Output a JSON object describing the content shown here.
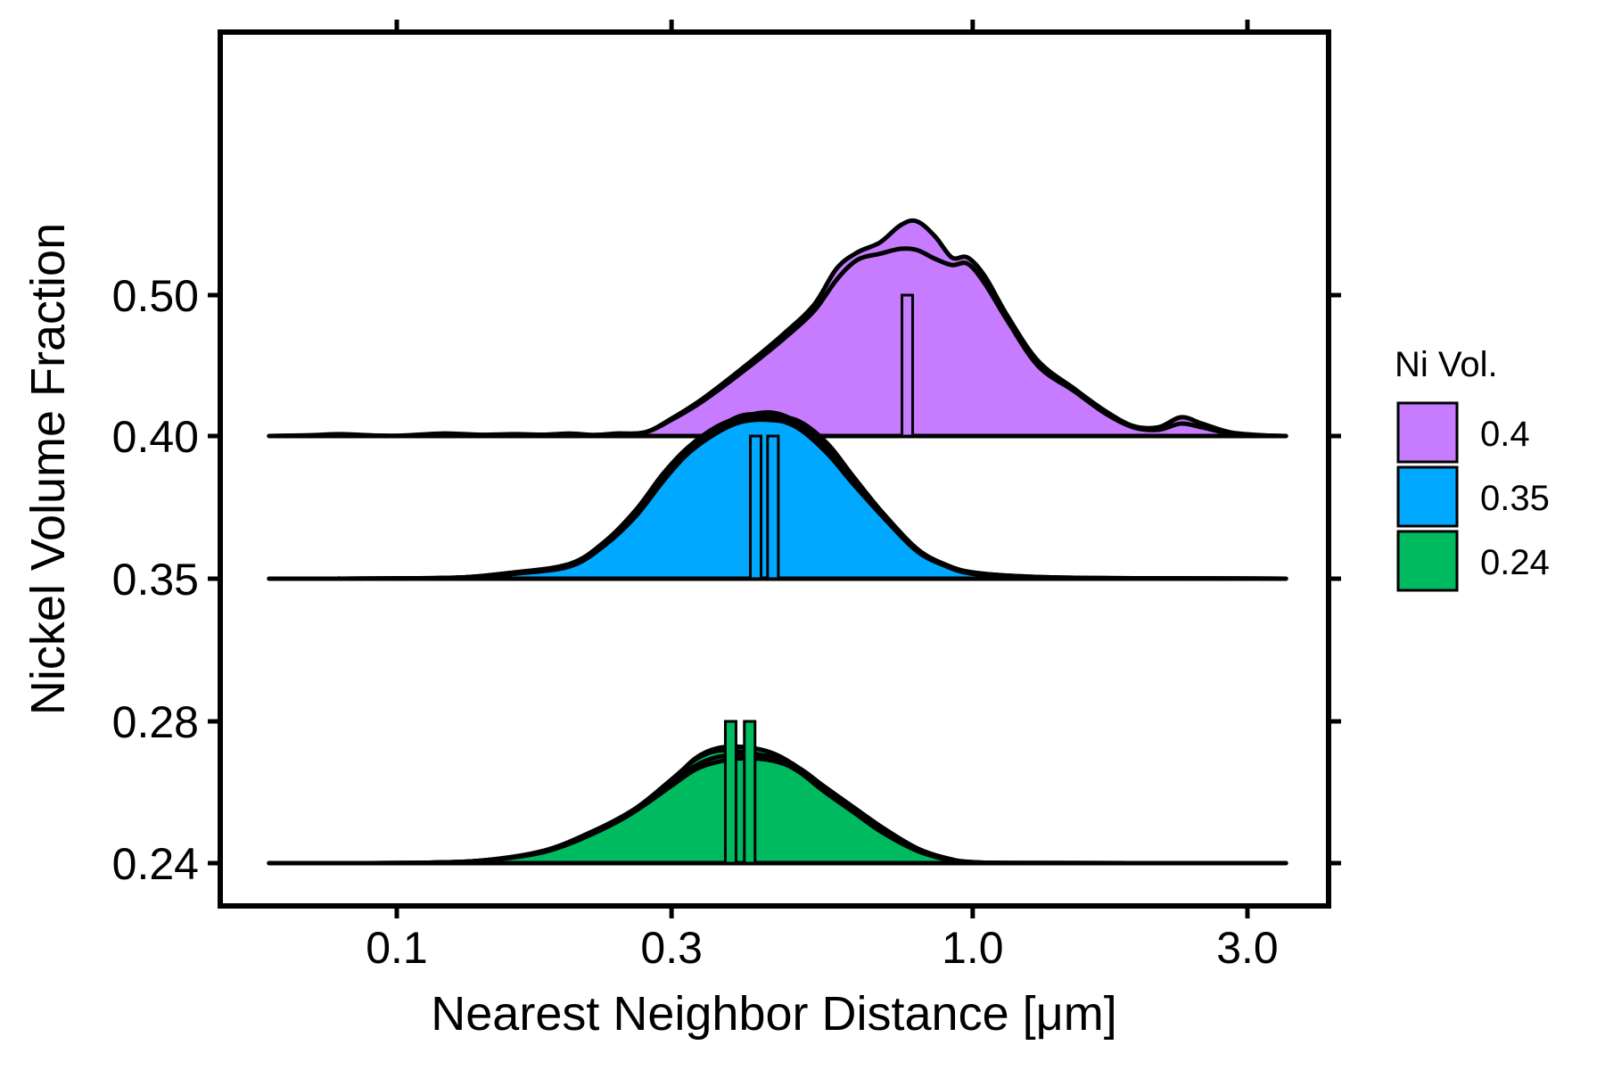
{
  "chart_data": {
    "type": "ridgeline-density",
    "title": "",
    "xlabel": "Nearest Neighbor Distance [μm]",
    "ylabel": "Nickel Volume Fraction",
    "x_scale": "log10",
    "xlim": [
      0.055,
      4.2
    ],
    "x_ticks": [
      {
        "value": 0.1,
        "label": "0.1"
      },
      {
        "value": 0.3,
        "label": "0.3"
      },
      {
        "value": 1.0,
        "label": "1.0"
      },
      {
        "value": 3.0,
        "label": "3.0"
      }
    ],
    "y_ticks": [
      "0.24",
      "0.28",
      "0.35",
      "0.40",
      "0.50"
    ],
    "grid": false,
    "legend": {
      "title": "Ni Vol.",
      "position": "right",
      "entries": [
        {
          "label": "0.4",
          "color": "#C77CFF"
        },
        {
          "label": "0.35",
          "color": "#00A9FF"
        },
        {
          "label": "0.24",
          "color": "#00BA5F"
        }
      ]
    },
    "series": [
      {
        "group": "0.24",
        "color": "#00BA5F",
        "baseline_tick": "0.24",
        "median_markers": [
          0.38,
          0.41
        ],
        "curves": [
          [
            [
              0.08,
              0
            ],
            [
              0.11,
              0.003
            ],
            [
              0.14,
              0.02
            ],
            [
              0.18,
              0.09
            ],
            [
              0.22,
              0.24
            ],
            [
              0.26,
              0.42
            ],
            [
              0.3,
              0.66
            ],
            [
              0.33,
              0.84
            ],
            [
              0.36,
              0.92
            ],
            [
              0.4,
              0.93
            ],
            [
              0.45,
              0.88
            ],
            [
              0.5,
              0.76
            ],
            [
              0.55,
              0.6
            ],
            [
              0.62,
              0.43
            ],
            [
              0.7,
              0.25
            ],
            [
              0.8,
              0.1
            ],
            [
              0.9,
              0.03
            ],
            [
              1.0,
              0.005
            ],
            [
              1.3,
              0.001
            ],
            [
              3.5,
              0
            ]
          ],
          [
            [
              0.08,
              0
            ],
            [
              0.11,
              0.003
            ],
            [
              0.14,
              0.02
            ],
            [
              0.18,
              0.1
            ],
            [
              0.22,
              0.26
            ],
            [
              0.26,
              0.44
            ],
            [
              0.3,
              0.67
            ],
            [
              0.33,
              0.83
            ],
            [
              0.36,
              0.9
            ],
            [
              0.4,
              0.89
            ],
            [
              0.45,
              0.84
            ],
            [
              0.5,
              0.73
            ],
            [
              0.55,
              0.58
            ],
            [
              0.62,
              0.41
            ],
            [
              0.7,
              0.24
            ],
            [
              0.8,
              0.1
            ],
            [
              0.9,
              0.03
            ],
            [
              1.0,
              0.005
            ],
            [
              1.3,
              0.001
            ],
            [
              3.5,
              0
            ]
          ],
          [
            [
              0.08,
              0
            ],
            [
              0.11,
              0.003
            ],
            [
              0.14,
              0.02
            ],
            [
              0.18,
              0.09
            ],
            [
              0.22,
              0.25
            ],
            [
              0.26,
              0.43
            ],
            [
              0.3,
              0.64
            ],
            [
              0.33,
              0.78
            ],
            [
              0.36,
              0.85
            ],
            [
              0.4,
              0.87
            ],
            [
              0.45,
              0.85
            ],
            [
              0.5,
              0.76
            ],
            [
              0.55,
              0.62
            ],
            [
              0.62,
              0.45
            ],
            [
              0.7,
              0.28
            ],
            [
              0.8,
              0.12
            ],
            [
              0.9,
              0.04
            ],
            [
              1.0,
              0.008
            ],
            [
              1.3,
              0.001
            ],
            [
              3.5,
              0
            ]
          ],
          [
            [
              0.08,
              0
            ],
            [
              0.11,
              0.003
            ],
            [
              0.14,
              0.02
            ],
            [
              0.18,
              0.09
            ],
            [
              0.22,
              0.24
            ],
            [
              0.26,
              0.42
            ],
            [
              0.3,
              0.62
            ],
            [
              0.33,
              0.75
            ],
            [
              0.36,
              0.81
            ],
            [
              0.4,
              0.84
            ],
            [
              0.45,
              0.82
            ],
            [
              0.5,
              0.74
            ],
            [
              0.55,
              0.6
            ],
            [
              0.62,
              0.44
            ],
            [
              0.7,
              0.27
            ],
            [
              0.8,
              0.11
            ],
            [
              0.9,
              0.04
            ],
            [
              1.0,
              0.007
            ],
            [
              1.3,
              0.001
            ],
            [
              3.5,
              0
            ]
          ]
        ]
      },
      {
        "group": "0.35",
        "color": "#00A9FF",
        "baseline_tick": "0.35",
        "median_markers": [
          0.42,
          0.45
        ],
        "curves": [
          [
            [
              0.06,
              0
            ],
            [
              0.1,
              0.002
            ],
            [
              0.13,
              0.01
            ],
            [
              0.16,
              0.05
            ],
            [
              0.2,
              0.12
            ],
            [
              0.23,
              0.3
            ],
            [
              0.26,
              0.55
            ],
            [
              0.29,
              0.84
            ],
            [
              0.32,
              1.05
            ],
            [
              0.36,
              1.22
            ],
            [
              0.4,
              1.3
            ],
            [
              0.45,
              1.33
            ],
            [
              0.5,
              1.24
            ],
            [
              0.56,
              1.02
            ],
            [
              0.62,
              0.78
            ],
            [
              0.7,
              0.5
            ],
            [
              0.8,
              0.23
            ],
            [
              0.9,
              0.1
            ],
            [
              1.0,
              0.05
            ],
            [
              1.2,
              0.02
            ],
            [
              1.6,
              0.005
            ],
            [
              3.5,
              0
            ]
          ],
          [
            [
              0.06,
              0
            ],
            [
              0.1,
              0.002
            ],
            [
              0.13,
              0.01
            ],
            [
              0.16,
              0.04
            ],
            [
              0.2,
              0.11
            ],
            [
              0.23,
              0.29
            ],
            [
              0.26,
              0.54
            ],
            [
              0.29,
              0.82
            ],
            [
              0.32,
              1.03
            ],
            [
              0.36,
              1.2
            ],
            [
              0.4,
              1.28
            ],
            [
              0.45,
              1.28
            ],
            [
              0.5,
              1.2
            ],
            [
              0.56,
              1.0
            ],
            [
              0.62,
              0.76
            ],
            [
              0.7,
              0.49
            ],
            [
              0.8,
              0.22
            ],
            [
              0.9,
              0.1
            ],
            [
              1.0,
              0.04
            ],
            [
              1.2,
              0.015
            ],
            [
              1.6,
              0.004
            ],
            [
              3.5,
              0
            ]
          ],
          [
            [
              0.06,
              0
            ],
            [
              0.1,
              0.002
            ],
            [
              0.13,
              0.01
            ],
            [
              0.16,
              0.05
            ],
            [
              0.2,
              0.1
            ],
            [
              0.23,
              0.28
            ],
            [
              0.26,
              0.52
            ],
            [
              0.29,
              0.8
            ],
            [
              0.32,
              1.02
            ],
            [
              0.36,
              1.2
            ],
            [
              0.4,
              1.31
            ],
            [
              0.45,
              1.3
            ],
            [
              0.5,
              1.26
            ],
            [
              0.56,
              1.08
            ],
            [
              0.62,
              0.82
            ],
            [
              0.7,
              0.52
            ],
            [
              0.8,
              0.24
            ],
            [
              0.9,
              0.11
            ],
            [
              1.0,
              0.05
            ],
            [
              1.2,
              0.02
            ],
            [
              1.6,
              0.005
            ],
            [
              3.5,
              0
            ]
          ],
          [
            [
              0.06,
              0
            ],
            [
              0.1,
              0.002
            ],
            [
              0.13,
              0.01
            ],
            [
              0.16,
              0.04
            ],
            [
              0.2,
              0.1
            ],
            [
              0.23,
              0.27
            ],
            [
              0.26,
              0.5
            ],
            [
              0.29,
              0.78
            ],
            [
              0.32,
              1.0
            ],
            [
              0.36,
              1.17
            ],
            [
              0.4,
              1.26
            ],
            [
              0.45,
              1.27
            ],
            [
              0.5,
              1.22
            ],
            [
              0.56,
              1.04
            ],
            [
              0.62,
              0.8
            ],
            [
              0.7,
              0.52
            ],
            [
              0.8,
              0.24
            ],
            [
              0.9,
              0.1
            ],
            [
              1.0,
              0.04
            ],
            [
              1.2,
              0.015
            ],
            [
              1.6,
              0.004
            ],
            [
              3.5,
              0
            ]
          ]
        ]
      },
      {
        "group": "0.4",
        "color": "#C77CFF",
        "baseline_tick": "0.40",
        "median_markers": [
          0.77
        ],
        "curves": [
          [
            [
              0.06,
              0
            ],
            [
              0.07,
              0.006
            ],
            [
              0.08,
              0.015
            ],
            [
              0.09,
              0.005
            ],
            [
              0.1,
              0.002
            ],
            [
              0.12,
              0.02
            ],
            [
              0.14,
              0.01
            ],
            [
              0.16,
              0.015
            ],
            [
              0.18,
              0.01
            ],
            [
              0.2,
              0.02
            ],
            [
              0.22,
              0.008
            ],
            [
              0.24,
              0.02
            ],
            [
              0.27,
              0.03
            ],
            [
              0.3,
              0.14
            ],
            [
              0.34,
              0.3
            ],
            [
              0.4,
              0.55
            ],
            [
              0.47,
              0.82
            ],
            [
              0.53,
              1.05
            ],
            [
              0.58,
              1.34
            ],
            [
              0.63,
              1.47
            ],
            [
              0.69,
              1.55
            ],
            [
              0.75,
              1.69
            ],
            [
              0.8,
              1.72
            ],
            [
              0.86,
              1.6
            ],
            [
              0.92,
              1.43
            ],
            [
              0.98,
              1.43
            ],
            [
              1.05,
              1.28
            ],
            [
              1.15,
              0.96
            ],
            [
              1.3,
              0.6
            ],
            [
              1.5,
              0.38
            ],
            [
              1.7,
              0.2
            ],
            [
              1.9,
              0.08
            ],
            [
              2.1,
              0.07
            ],
            [
              2.3,
              0.15
            ],
            [
              2.5,
              0.1
            ],
            [
              2.8,
              0.03
            ],
            [
              3.2,
              0.005
            ],
            [
              3.5,
              0
            ]
          ],
          [
            [
              0.06,
              0
            ],
            [
              0.07,
              0.004
            ],
            [
              0.08,
              0.01
            ],
            [
              0.09,
              0.004
            ],
            [
              0.1,
              0.002
            ],
            [
              0.12,
              0.012
            ],
            [
              0.14,
              0.008
            ],
            [
              0.16,
              0.012
            ],
            [
              0.18,
              0.01
            ],
            [
              0.2,
              0.018
            ],
            [
              0.22,
              0.008
            ],
            [
              0.24,
              0.018
            ],
            [
              0.27,
              0.03
            ],
            [
              0.3,
              0.13
            ],
            [
              0.34,
              0.28
            ],
            [
              0.4,
              0.52
            ],
            [
              0.47,
              0.78
            ],
            [
              0.53,
              1.0
            ],
            [
              0.58,
              1.25
            ],
            [
              0.63,
              1.41
            ],
            [
              0.69,
              1.46
            ],
            [
              0.75,
              1.5
            ],
            [
              0.8,
              1.49
            ],
            [
              0.86,
              1.42
            ],
            [
              0.92,
              1.37
            ],
            [
              0.98,
              1.38
            ],
            [
              1.05,
              1.22
            ],
            [
              1.15,
              0.92
            ],
            [
              1.3,
              0.56
            ],
            [
              1.5,
              0.36
            ],
            [
              1.7,
              0.18
            ],
            [
              1.9,
              0.07
            ],
            [
              2.1,
              0.05
            ],
            [
              2.3,
              0.1
            ],
            [
              2.5,
              0.07
            ],
            [
              2.8,
              0.02
            ],
            [
              3.2,
              0.004
            ],
            [
              3.5,
              0
            ]
          ]
        ]
      }
    ]
  }
}
